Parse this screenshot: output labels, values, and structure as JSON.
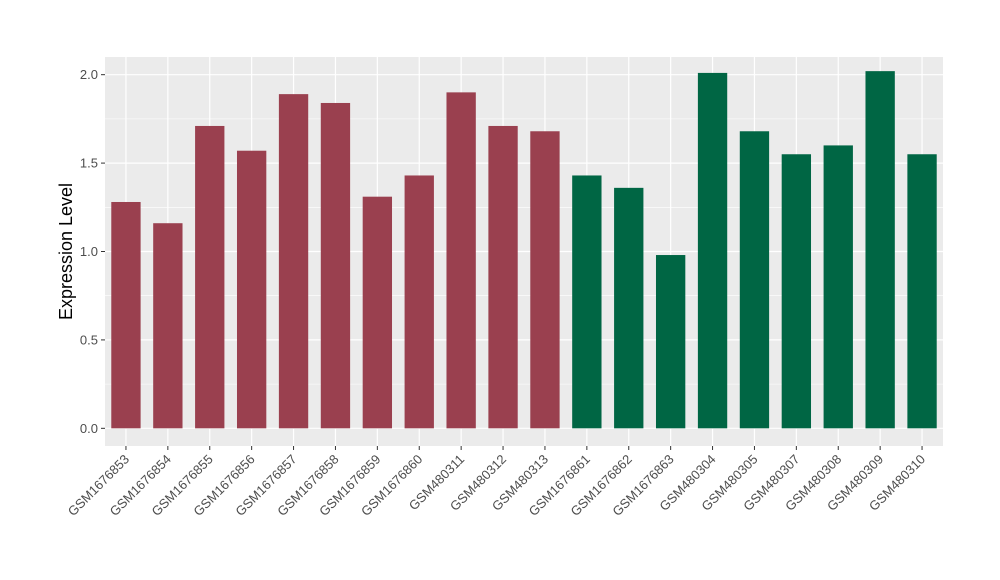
{
  "chart_data": {
    "type": "bar",
    "title": "",
    "xlabel": "",
    "ylabel": "Expression Level",
    "ylim": [
      -0.1,
      2.1
    ],
    "yticks": [
      "0.0",
      "0.5",
      "1.0",
      "1.5",
      "2.0"
    ],
    "ytick_values": [
      0,
      0.5,
      1.0,
      1.5,
      2.0
    ],
    "grid": true,
    "legend": "none",
    "categories": [
      "GSM1676853",
      "GSM1676854",
      "GSM1676855",
      "GSM1676856",
      "GSM1676857",
      "GSM1676858",
      "GSM1676859",
      "GSM1676860",
      "GSM480311",
      "GSM480312",
      "GSM480313",
      "GSM1676861",
      "GSM1676862",
      "GSM1676863",
      "GSM480304",
      "GSM480305",
      "GSM480307",
      "GSM480308",
      "GSM480309",
      "GSM480310"
    ],
    "values": [
      1.28,
      1.16,
      1.71,
      1.57,
      1.89,
      1.84,
      1.31,
      1.43,
      1.9,
      1.71,
      1.68,
      1.43,
      1.36,
      0.98,
      2.01,
      1.68,
      1.55,
      1.6,
      2.02,
      1.55
    ],
    "groups": [
      0,
      0,
      0,
      0,
      0,
      0,
      0,
      0,
      0,
      0,
      0,
      1,
      1,
      1,
      1,
      1,
      1,
      1,
      1,
      1
    ],
    "colors": [
      "#9a404f",
      "#006644"
    ],
    "panel_background": "#ebebeb",
    "grid_color": "#ffffff"
  }
}
